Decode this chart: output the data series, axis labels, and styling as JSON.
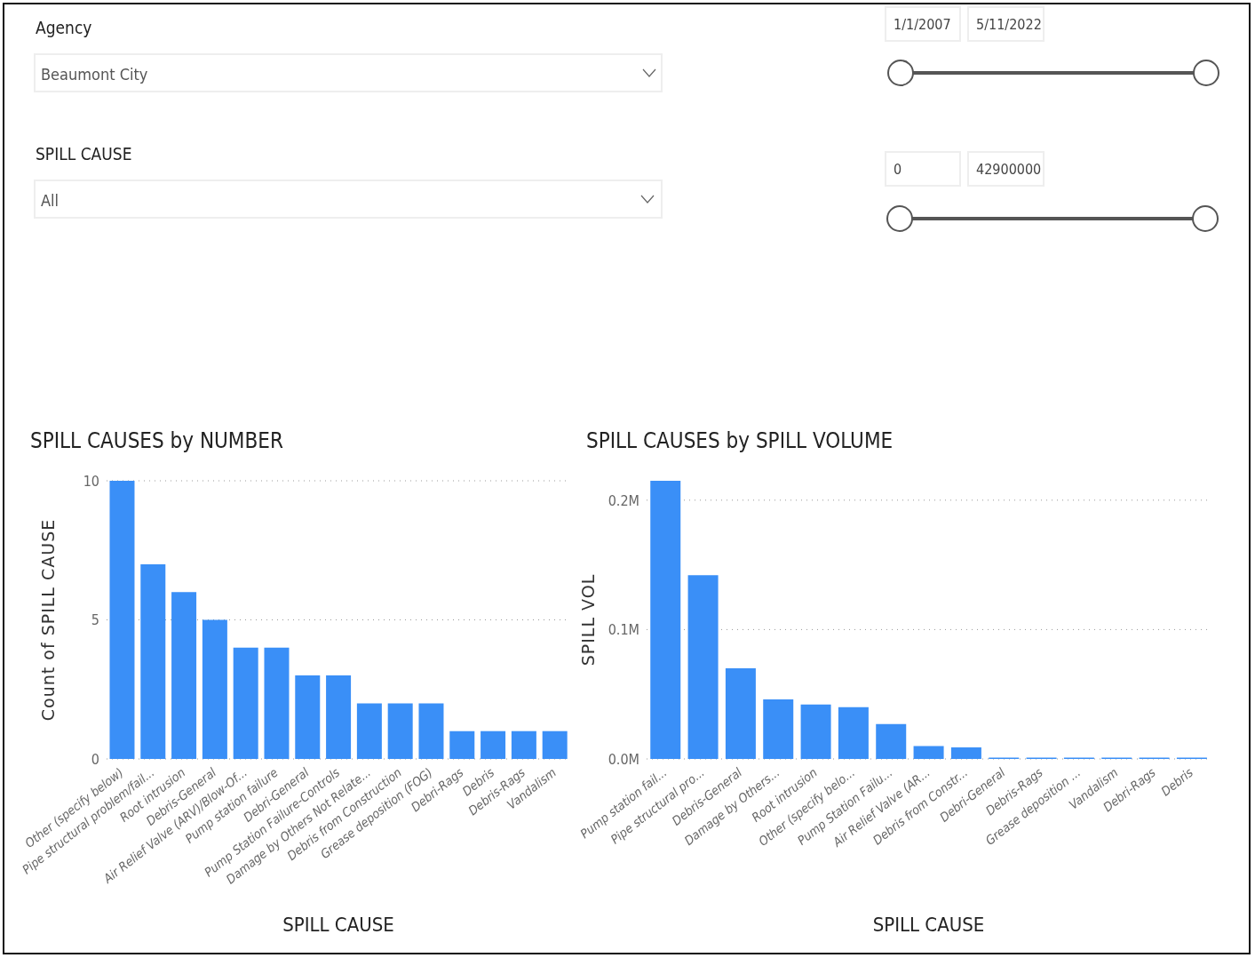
{
  "chart_data": [
    {
      "type": "other",
      "annotations": [
        "Agency",
        "Beaumont City",
        "SPILL CAUSE",
        "All",
        "1/1/2007",
        "5/11/2022",
        "0",
        "42900000"
      ]
    },
    {
      "type": "bar",
      "title": "SPILL CAUSES by NUMBER",
      "xlabel": "SPILL CAUSE",
      "ylabel": "Count of SPILL CAUSE",
      "categories": [
        "Other (specify below)",
        "Pipe structural problem/fail...",
        "Root intrusion",
        "Debris-General",
        "Air Relief Valve (ARV)/Blow-Of...",
        "Pump station failure",
        "Debri-General",
        "Pump Station Failure-Controls",
        "Damage by Others Not Relate...",
        "Debris from Construction",
        "Grease deposition (FOG)",
        "Debri-Rags",
        "Debris",
        "Debris-Rags",
        "Vandalism"
      ],
      "values": [
        10,
        7,
        6,
        5,
        4,
        4,
        3,
        3,
        2,
        2,
        2,
        1,
        1,
        1,
        1
      ],
      "color": "#3a8ff7",
      "ylim": [
        0,
        10
      ],
      "yticks": [
        0,
        5,
        10
      ],
      "grid": "y"
    },
    {
      "type": "bar",
      "title": "SPILL CAUSES by SPILL VOLUME",
      "xlabel": "SPILL CAUSE",
      "ylabel": "SPILL VOL",
      "categories": [
        "Pump station fail...",
        "Pipe structural pro...",
        "Debris-General",
        "Damage by Others...",
        "Root intrusion",
        "Other (specify belo...",
        "Pump Station Failu...",
        "Air Relief Valve (AR...",
        "Debris from Constr...",
        "Debri-General",
        "Debris-Rags",
        "Grease deposition ...",
        "Vandalism",
        "Debri-Rags",
        "Debris"
      ],
      "values": [
        215000,
        142000,
        70000,
        46000,
        42000,
        40000,
        27000,
        10000,
        9000,
        1000,
        1000,
        1000,
        1000,
        1000,
        1000
      ],
      "color": "#3a8ff7",
      "ylim": [
        0,
        215000
      ],
      "yticks": [
        {
          "value": 0,
          "label": "0.0M"
        },
        {
          "value": 100000,
          "label": "0.1M"
        },
        {
          "value": 200000,
          "label": "0.2M"
        }
      ],
      "grid": "y"
    }
  ]
}
